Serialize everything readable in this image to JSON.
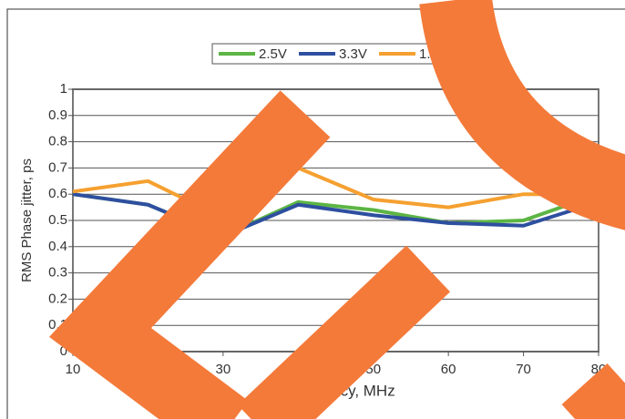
{
  "chart_data": {
    "type": "line",
    "x_label": "Frequency, MHz",
    "y_label": "RMS Phase jitter, ps",
    "x": [
      10,
      20,
      30,
      40,
      50,
      60,
      70,
      80
    ],
    "series": [
      {
        "name": "2.5V",
        "color": "#5cb544",
        "values": [
          0.6,
          0.56,
          0.44,
          0.57,
          0.54,
          0.49,
          0.5,
          0.6
        ]
      },
      {
        "name": "3.3V",
        "color": "#2e4fa0",
        "values": [
          0.6,
          0.56,
          0.44,
          0.56,
          0.52,
          0.49,
          0.48,
          0.57
        ]
      },
      {
        "name": "1.8V",
        "color": "#f5a030",
        "values": [
          0.61,
          0.65,
          0.51,
          0.7,
          0.58,
          0.55,
          0.6,
          0.6
        ]
      }
    ],
    "xlim": [
      10,
      80
    ],
    "xticks": [
      10,
      20,
      30,
      40,
      50,
      60,
      70,
      80
    ],
    "ylim": [
      0,
      1
    ],
    "yticks": [
      0,
      0.1,
      0.2,
      0.3,
      0.4,
      0.5,
      0.6,
      0.7,
      0.8,
      0.9,
      1
    ],
    "grid": true,
    "legend": "top"
  }
}
